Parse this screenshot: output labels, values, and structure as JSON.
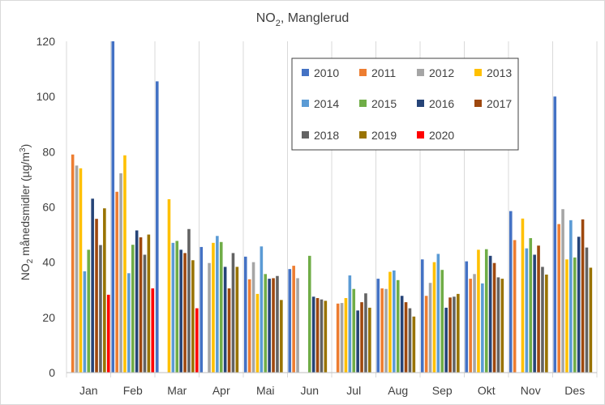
{
  "chart_data": {
    "type": "bar",
    "title_parts": [
      "NO",
      "2",
      ", Manglerud"
    ],
    "ylabel_parts": [
      "NO",
      "2",
      " månedsmidler (µg/m",
      "3",
      ")"
    ],
    "xlabel": "",
    "ylim": [
      0,
      120
    ],
    "yticks": [
      "0",
      "20",
      "40",
      "60",
      "80",
      "100",
      "120"
    ],
    "grid": "vertical category separators",
    "legend_position": "inside-top-right",
    "categories": [
      "Jan",
      "Feb",
      "Mar",
      "Apr",
      "Mai",
      "Jun",
      "Jul",
      "Aug",
      "Sep",
      "Okt",
      "Nov",
      "Des"
    ],
    "series": [
      {
        "name": "2010",
        "color": "#4472C4",
        "values": [
          null,
          120,
          105.5,
          45.5,
          42,
          37.5,
          null,
          34,
          41,
          40.3,
          58.5,
          100
        ]
      },
      {
        "name": "2011",
        "color": "#ED7D31",
        "values": [
          79,
          65.5,
          null,
          null,
          33.8,
          38.7,
          25,
          30.5,
          27.8,
          34,
          48,
          53.8
        ]
      },
      {
        "name": "2012",
        "color": "#A5A5A5",
        "values": [
          75,
          72.2,
          null,
          39.7,
          40,
          34.2,
          25.2,
          30.3,
          32.5,
          35.7,
          null,
          59.2
        ]
      },
      {
        "name": "2013",
        "color": "#FFC000",
        "values": [
          74,
          78.7,
          62.8,
          47,
          28.5,
          null,
          27,
          36.5,
          40,
          44.5,
          55.8,
          41
        ]
      },
      {
        "name": "2014",
        "color": "#5B9BD5",
        "values": [
          36.7,
          36,
          47,
          49.5,
          45.7,
          null,
          35.2,
          37,
          43,
          32.3,
          45,
          55.2
        ]
      },
      {
        "name": "2015",
        "color": "#70AD47",
        "values": [
          44.5,
          46.3,
          47.7,
          47.3,
          35.7,
          42.3,
          30.3,
          33.5,
          37.2,
          44.7,
          48.7,
          41.7
        ]
      },
      {
        "name": "2016",
        "color": "#264478",
        "values": [
          63,
          51.5,
          44.5,
          38.3,
          34,
          27.5,
          22.5,
          27.8,
          23.5,
          42.3,
          42.7,
          49.2
        ]
      },
      {
        "name": "2017",
        "color": "#9E480E",
        "values": [
          55.7,
          49,
          43.3,
          30.5,
          34.2,
          27,
          25.5,
          25.5,
          27.2,
          39.7,
          46,
          55.5
        ]
      },
      {
        "name": "2018",
        "color": "#636363",
        "values": [
          46.2,
          42.7,
          52,
          43.3,
          35,
          26.5,
          28.7,
          23.3,
          27.5,
          34.5,
          38.3,
          45.3
        ]
      },
      {
        "name": "2019",
        "color": "#997300",
        "values": [
          59.5,
          50,
          40.7,
          38.3,
          26.3,
          26,
          23.5,
          20.3,
          28.5,
          34,
          35.5,
          38
        ]
      },
      {
        "name": "2020",
        "color": "#FF0000",
        "values": [
          28.2,
          30.5,
          23.3,
          null,
          null,
          null,
          null,
          null,
          null,
          null,
          null,
          null
        ]
      }
    ]
  }
}
